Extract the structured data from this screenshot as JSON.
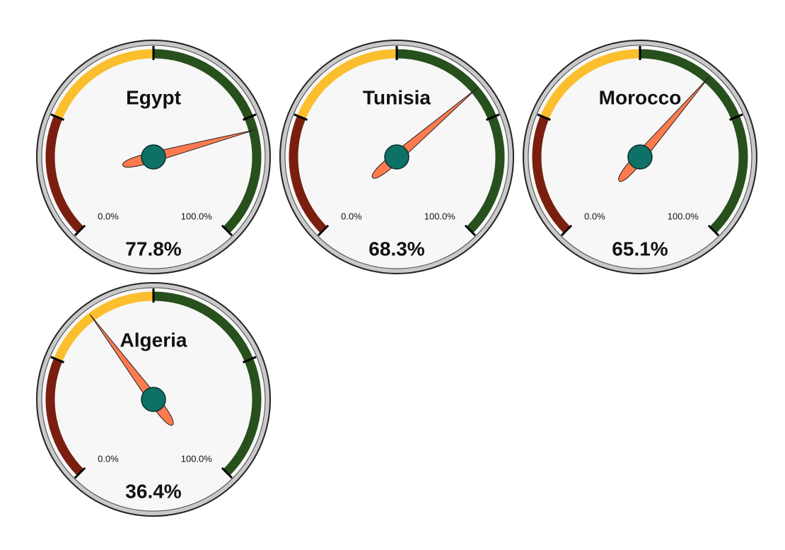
{
  "chart_data": [
    {
      "type": "gauge",
      "title": "Egypt",
      "value": 77.8,
      "value_label": "77.8%",
      "lim": [
        0,
        100
      ],
      "ticks": [
        {
          "value": 0,
          "label": "0.0%"
        },
        {
          "value": 100,
          "label": "100.0%"
        }
      ],
      "major_ticks": [
        25,
        50,
        75
      ],
      "bands": [
        {
          "from": 0,
          "to": 25,
          "color": "#7a1f0f"
        },
        {
          "from": 25,
          "to": 50,
          "color": "#fbbf2d"
        },
        {
          "from": 50,
          "to": 100,
          "color": "#27501c"
        }
      ],
      "needle_color": "#ff7b4f",
      "hub_color": "#0e7166"
    },
    {
      "type": "gauge",
      "title": "Tunisia",
      "value": 68.3,
      "value_label": "68.3%",
      "lim": [
        0,
        100
      ],
      "ticks": [
        {
          "value": 0,
          "label": "0.0%"
        },
        {
          "value": 100,
          "label": "100.0%"
        }
      ],
      "major_ticks": [
        25,
        50,
        75
      ],
      "bands": [
        {
          "from": 0,
          "to": 25,
          "color": "#7a1f0f"
        },
        {
          "from": 25,
          "to": 50,
          "color": "#fbbf2d"
        },
        {
          "from": 50,
          "to": 100,
          "color": "#27501c"
        }
      ],
      "needle_color": "#ff7b4f",
      "hub_color": "#0e7166"
    },
    {
      "type": "gauge",
      "title": "Morocco",
      "value": 65.1,
      "value_label": "65.1%",
      "lim": [
        0,
        100
      ],
      "ticks": [
        {
          "value": 0,
          "label": "0.0%"
        },
        {
          "value": 100,
          "label": "100.0%"
        }
      ],
      "major_ticks": [
        25,
        50,
        75
      ],
      "bands": [
        {
          "from": 0,
          "to": 25,
          "color": "#7a1f0f"
        },
        {
          "from": 25,
          "to": 50,
          "color": "#fbbf2d"
        },
        {
          "from": 50,
          "to": 100,
          "color": "#27501c"
        }
      ],
      "needle_color": "#ff7b4f",
      "hub_color": "#0e7166"
    },
    {
      "type": "gauge",
      "title": "Algeria",
      "value": 36.4,
      "value_label": "36.4%",
      "lim": [
        0,
        100
      ],
      "ticks": [
        {
          "value": 0,
          "label": "0.0%"
        },
        {
          "value": 100,
          "label": "100.0%"
        }
      ],
      "major_ticks": [
        25,
        50,
        75
      ],
      "bands": [
        {
          "from": 0,
          "to": 25,
          "color": "#7a1f0f"
        },
        {
          "from": 25,
          "to": 50,
          "color": "#fbbf2d"
        },
        {
          "from": 50,
          "to": 100,
          "color": "#27501c"
        }
      ],
      "needle_color": "#ff7b4f",
      "hub_color": "#0e7166"
    }
  ]
}
